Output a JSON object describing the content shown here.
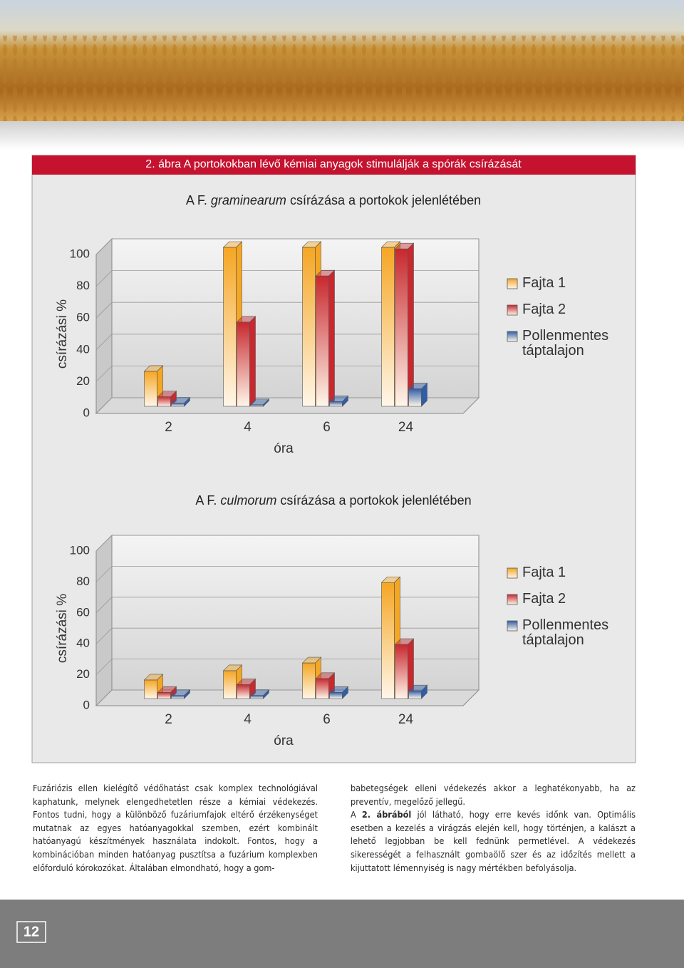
{
  "figure_caption": "2. ábra A portokokban lévő kémiai anyagok stimulálják a spórák csírázását",
  "chart_data": [
    {
      "type": "bar",
      "title": {
        "prefix": "A F.",
        "species": "graminearum",
        "rest": "csírázása a portokok jelenlétében"
      },
      "y_label": "csírázási %",
      "x_label": "óra",
      "categories": [
        "2",
        "4",
        "6",
        "24"
      ],
      "ylim": [
        0,
        100
      ],
      "yticks": [
        0,
        20,
        40,
        60,
        80,
        100
      ],
      "series": [
        {
          "name": "Fajta 1",
          "color": "#f5a623",
          "values": [
            22,
            100,
            100,
            100
          ]
        },
        {
          "name": "Fajta 2",
          "color": "#c8282e",
          "values": [
            6,
            53,
            82,
            99
          ]
        },
        {
          "name": "Pollenmentes táptalajon",
          "color": "#2f5ea8",
          "values": [
            2,
            1,
            3,
            11
          ]
        }
      ]
    },
    {
      "type": "bar",
      "title": {
        "prefix": "A F.",
        "species": "culmorum",
        "rest": "csírázása a portokok jelenlétében"
      },
      "y_label": "csírázási %",
      "x_label": "óra",
      "categories": [
        "2",
        "4",
        "6",
        "24"
      ],
      "ylim": [
        0,
        100
      ],
      "yticks": [
        0,
        20,
        40,
        60,
        80,
        100
      ],
      "series": [
        {
          "name": "Fajta 1",
          "color": "#f5a623",
          "values": [
            12,
            18,
            23,
            75
          ]
        },
        {
          "name": "Fajta 2",
          "color": "#c8282e",
          "values": [
            4,
            9,
            13,
            35
          ]
        },
        {
          "name": "Pollenmentes táptalajon",
          "color": "#2f5ea8",
          "values": [
            2,
            2,
            4,
            5
          ]
        }
      ]
    }
  ],
  "body": {
    "left": "Fuzáriózis ellen kielégítő védőhatást csak komplex technológiával kaphatunk, melynek elengedhetetlen része a kémiai védekezés. Fontos tudni, hogy a különböző fuzáriumfajok eltérő érzékenységet mutatnak az egyes hatóanyagokkal szemben, ezért kombinált hatóanyagú készítmények használata indokolt. Fontos, hogy a kombinációban minden hatóanyag pusztítsa a fuzárium komplexben előforduló kórokozókat. Általában elmondható, hogy a gom-",
    "right_first": "babetegségek elleni védekezés akkor a leghatékonyabb, ha az preventív, megelőző jellegű.",
    "right_second": {
      "start": "A",
      "bold": "2. ábrából",
      "end": "jól látható, hogy erre kevés időnk van. Optimális esetben a kezelés a virágzás elején kell, hogy történjen, a kalászt a lehető legjobban be kell fednünk permetlével. A védekezés sikerességét a felhasznált gombaölő szer és az időzítés mellett a kijuttatott lémennyiség is nagy mértékben befolyásolja."
    }
  },
  "page_number": "12"
}
